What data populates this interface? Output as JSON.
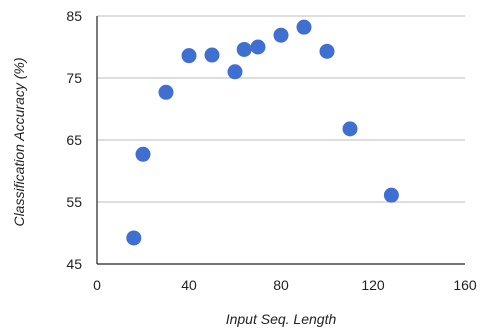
{
  "chart_data": {
    "type": "scatter",
    "title": "",
    "xlabel": "Input Seq. Length",
    "ylabel": "Classification Accuracy (%)",
    "xlim": [
      0,
      160
    ],
    "ylim": [
      45,
      85
    ],
    "xticks": [
      0,
      40,
      80,
      120,
      160
    ],
    "yticks": [
      45,
      55,
      65,
      75,
      85
    ],
    "grid": {
      "horizontal": true,
      "vertical": false
    },
    "legend": "none",
    "series": [
      {
        "color": "#3f6fd1",
        "points": [
          {
            "x": 16,
            "y": 49.2
          },
          {
            "x": 20,
            "y": 62.7
          },
          {
            "x": 30,
            "y": 72.7
          },
          {
            "x": 40,
            "y": 78.6
          },
          {
            "x": 50,
            "y": 78.7
          },
          {
            "x": 60,
            "y": 76.0
          },
          {
            "x": 64,
            "y": 79.6
          },
          {
            "x": 70,
            "y": 80.0
          },
          {
            "x": 80,
            "y": 81.9
          },
          {
            "x": 90,
            "y": 83.2
          },
          {
            "x": 100,
            "y": 79.3
          },
          {
            "x": 110,
            "y": 66.8
          },
          {
            "x": 128,
            "y": 56.1
          }
        ]
      }
    ]
  }
}
